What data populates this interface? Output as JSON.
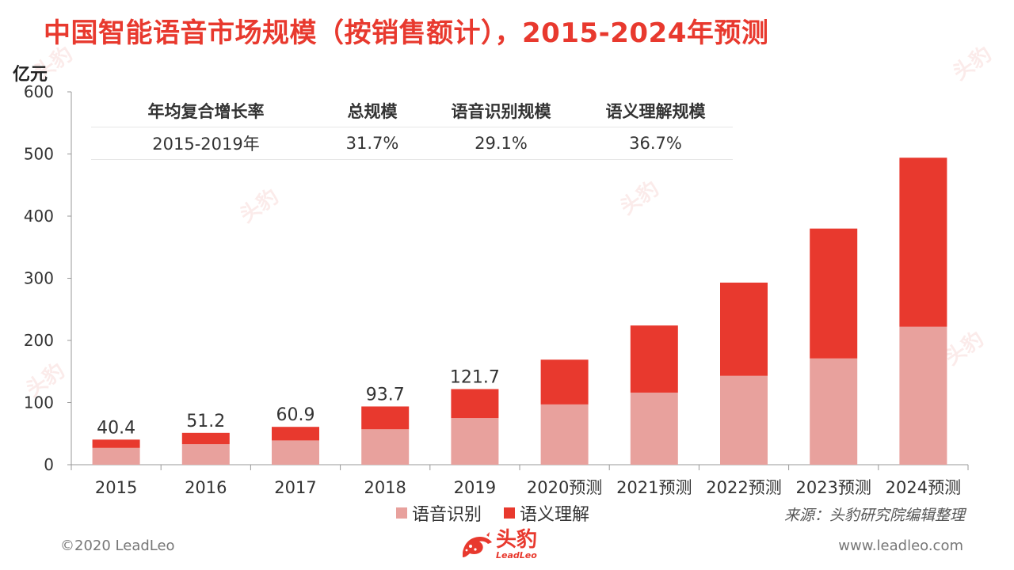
{
  "title": "中国智能语音市场规模（按销售额计），2015-2024年预测",
  "unit": "亿元",
  "cagr_table": {
    "headers": [
      "年均复合增长率",
      "总规模",
      "语音识别规模",
      "语义理解规模"
    ],
    "row": [
      "2015-2019年",
      "31.7%",
      "29.1%",
      "36.7%"
    ]
  },
  "legend": {
    "speech_recognition": "语音识别",
    "semantic_understanding": "语义理解"
  },
  "source": "来源：头豹研究院编辑整理",
  "copyright": "©2020 LeadLeo",
  "website": "www.leadleo.com",
  "logo": {
    "cn": "头豹",
    "en": "LeadLeo"
  },
  "watermark": "头豹",
  "colors": {
    "title": "#e8392e",
    "speech_recognition": "#e8a19d",
    "semantic_understanding": "#e8392e"
  },
  "chart_data": {
    "type": "bar",
    "stacked": true,
    "categories": [
      "2015",
      "2016",
      "2017",
      "2018",
      "2019",
      "2020预测",
      "2021预测",
      "2022预测",
      "2023预测",
      "2024预测"
    ],
    "series": [
      {
        "name": "语音识别",
        "values": [
          27,
          33,
          39,
          57,
          75,
          97,
          116,
          143,
          171,
          222
        ]
      },
      {
        "name": "语义理解",
        "values": [
          13.4,
          18.2,
          21.9,
          36.7,
          46.7,
          72,
          108,
          150,
          209,
          272
        ]
      }
    ],
    "totals_labels": [
      "40.4",
      "51.2",
      "60.9",
      "93.7",
      "121.7",
      null,
      null,
      null,
      null,
      null
    ],
    "ylabel": "亿元",
    "ylim": [
      0,
      600
    ],
    "yticks": [
      0,
      100,
      200,
      300,
      400,
      500,
      600
    ],
    "legend_position": "bottom",
    "grid": false
  }
}
